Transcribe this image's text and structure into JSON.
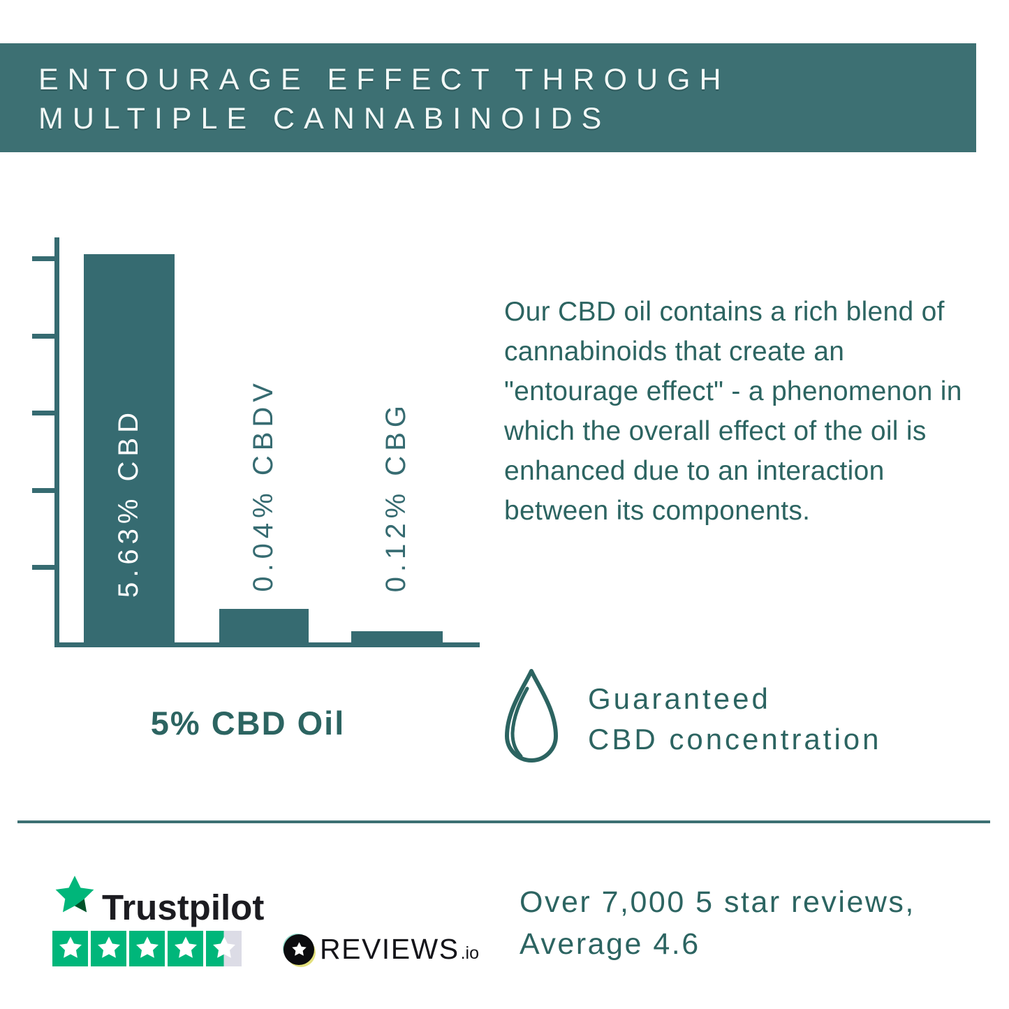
{
  "header": {
    "title": "ENTOURAGE EFFECT THROUGH MULTIPLE CANNABINOIDS",
    "bg_color": "#3d7073",
    "text_color": "#f2f9f7"
  },
  "chart_data": {
    "type": "bar",
    "title": "5% CBD Oil",
    "categories": [
      "CBD",
      "CBDV",
      "CBG"
    ],
    "values": [
      5.63,
      0.04,
      0.12
    ],
    "unit": "%",
    "bar_labels": [
      "5.63% CBD",
      "0.04% CBDV",
      "0.12% CBG"
    ],
    "bar_color": "#366b71",
    "axis_color": "#366b71",
    "ylim": [
      0,
      6
    ],
    "y_ticks_count": 5,
    "grid": false,
    "legend": false,
    "note": "bar heights exaggerated for small values in source graphic",
    "bar_display_heights": [
      556,
      48,
      16
    ]
  },
  "description": {
    "text": "Our CBD oil contains a rich blend of cannabinoids that create an \"entourage effect\" - a phenomenon in which the overall effect of the oil is enhanced due to an interaction between its components.",
    "color": "#2c6461"
  },
  "guarantee": {
    "icon": "droplet-icon",
    "line1": "Guaranteed",
    "line2": "CBD concentration"
  },
  "reviews_section": {
    "trustpilot": {
      "label": "Trustpilot",
      "rating": 4.5,
      "stars_total": 5,
      "green": "#00b67a",
      "empty": "#dcdce6"
    },
    "reviewsio": {
      "label": "REVIEWS",
      "suffix": ".io"
    },
    "summary": {
      "line1": "Over 7,000 5 star reviews,",
      "line2": "Average 4.6"
    }
  }
}
